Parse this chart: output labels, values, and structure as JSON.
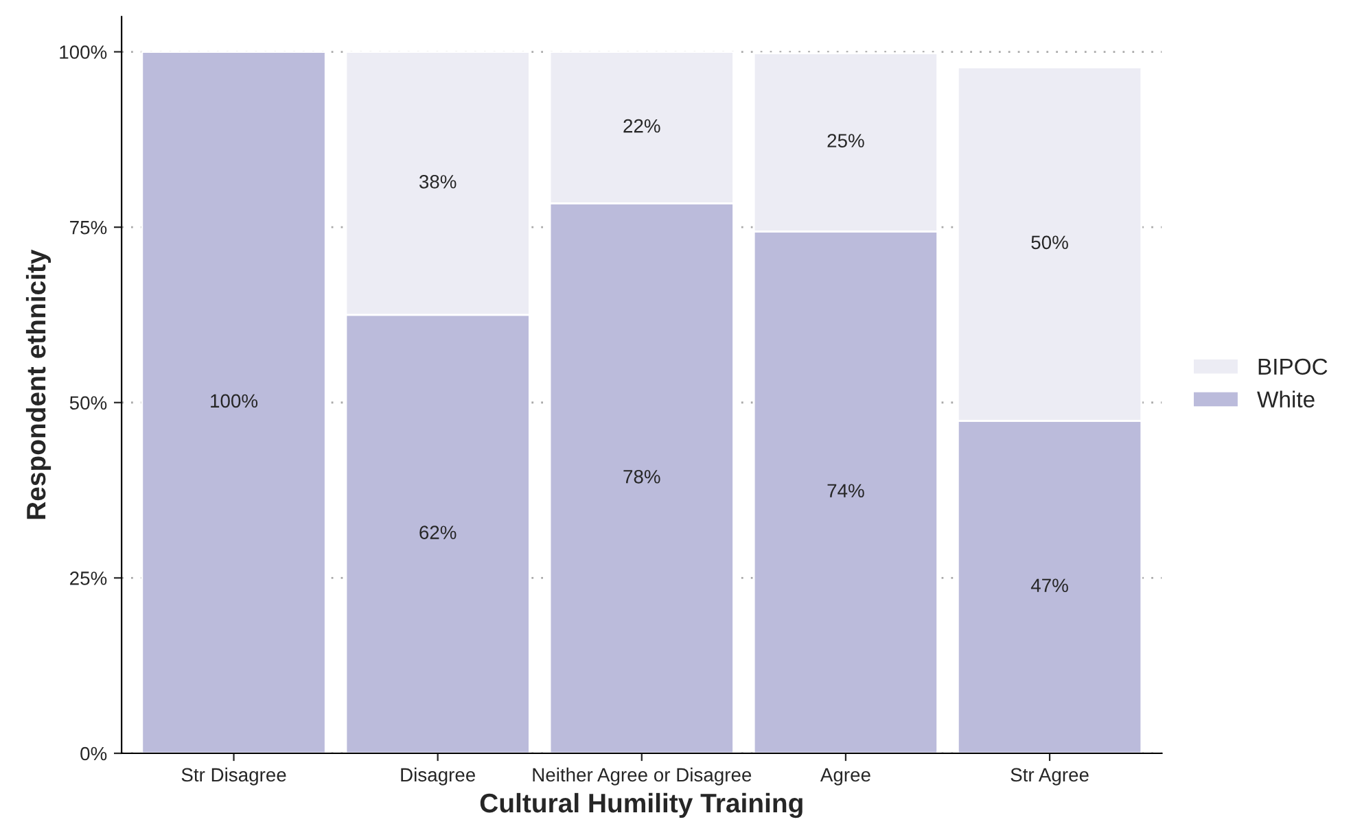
{
  "chart_data": {
    "type": "bar",
    "stacked": true,
    "xlabel": "Cultural Humility Training",
    "ylabel": "Respondent ethnicity",
    "categories": [
      "Str Disagree",
      "Disagree",
      "Neither Agree or Disagree",
      "Agree",
      "Str Agree"
    ],
    "series": [
      {
        "name": "White",
        "color": "#bbbbdb",
        "values": [
          100,
          62.5,
          78.4,
          74.4,
          47.4
        ],
        "value_labels": [
          "100%",
          "62%",
          "78%",
          "74%",
          "47%"
        ]
      },
      {
        "name": "BIPOC",
        "color": "#ececf4",
        "values": [
          null,
          37.5,
          21.6,
          25.4,
          50.4
        ],
        "value_labels": [
          null,
          "38%",
          "22%",
          "25%",
          "50%"
        ]
      }
    ],
    "ylim": [
      0,
      105
    ],
    "yticks": [
      {
        "value": 0,
        "label": "0%"
      },
      {
        "value": 25,
        "label": "25%"
      },
      {
        "value": 50,
        "label": "50%"
      },
      {
        "value": 75,
        "label": "75%"
      },
      {
        "value": 100,
        "label": "100%"
      }
    ],
    "grid": "y",
    "legend": "right"
  }
}
